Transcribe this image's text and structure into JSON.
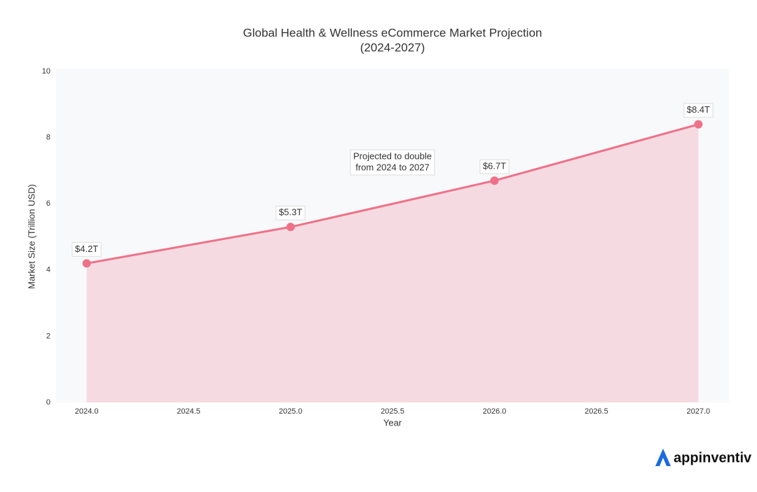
{
  "chart_data": {
    "type": "area-line",
    "title": [
      "Global Health & Wellness eCommerce Market Projection",
      "(2024-2027)"
    ],
    "x_label": "Year",
    "y_label": "Market Size (Trillion USD)",
    "x": [
      2024,
      2025,
      2026,
      2027
    ],
    "series": [
      {
        "name": "Market Size",
        "color": "#ef7189",
        "values": [
          4.2,
          5.3,
          6.7,
          8.4
        ],
        "value_labels": [
          "$4.2T",
          "$5.3T",
          "$6.7T",
          "$8.4T"
        ]
      }
    ],
    "xlim": [
      2023.85,
      2027.15
    ],
    "xticks": [
      {
        "value": 2024,
        "label": "2024.0"
      },
      2024.5,
      {
        "value": 2025,
        "label": "2025.0"
      },
      2025.5,
      {
        "value": 2026,
        "label": "2026.0"
      },
      2026.5,
      {
        "value": 2027,
        "label": "2027.0"
      }
    ],
    "ylim": [
      0,
      10
    ],
    "yticks": [
      0,
      2,
      4,
      6,
      8,
      10
    ],
    "annotation": [
      "Projected to double",
      "from 2024 to 2027"
    ],
    "watermark": "appinventiv"
  }
}
